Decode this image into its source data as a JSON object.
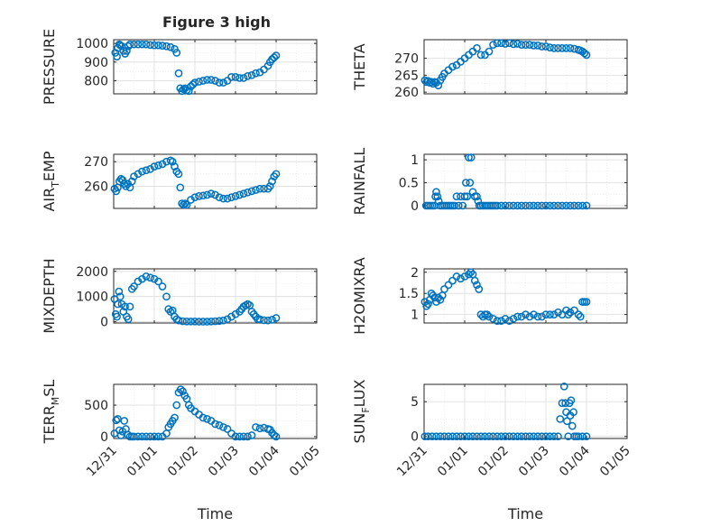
{
  "figure": {
    "title": "Figure 3 high"
  },
  "colors": {
    "marker": "#0072bd"
  },
  "chart_data": [
    {
      "id": "pressure",
      "type": "scatter",
      "ylabel": "PRESSURE",
      "xlim": [
        0,
        5
      ],
      "ylim": [
        730,
        1020
      ],
      "yticks": [
        800,
        900,
        1000
      ],
      "yticklabels": [
        "800",
        "900",
        "1000"
      ],
      "xticks": [],
      "x": [
        0.04,
        0.08,
        0.1,
        0.14,
        0.16,
        0.2,
        0.24,
        0.28,
        0.32,
        0.36,
        0.4,
        0.5,
        0.6,
        0.7,
        0.8,
        0.9,
        1.0,
        1.1,
        1.2,
        1.3,
        1.4,
        1.5,
        1.55,
        1.6,
        1.64,
        1.68,
        1.72,
        1.76,
        1.8,
        1.85,
        1.9,
        1.95,
        2.0,
        2.1,
        2.2,
        2.3,
        2.4,
        2.5,
        2.6,
        2.7,
        2.8,
        2.9,
        3.0,
        3.1,
        3.2,
        3.3,
        3.4,
        3.5,
        3.6,
        3.7,
        3.8,
        3.85,
        3.9,
        3.95,
        4.0
      ],
      "y": [
        950,
        930,
        975,
        995,
        990,
        985,
        960,
        945,
        960,
        985,
        995,
        995,
        995,
        995,
        995,
        992,
        990,
        990,
        988,
        985,
        980,
        970,
        950,
        840,
        760,
        745,
        755,
        760,
        750,
        745,
        770,
        780,
        790,
        795,
        800,
        805,
        805,
        800,
        790,
        790,
        800,
        820,
        820,
        815,
        815,
        825,
        830,
        840,
        845,
        860,
        880,
        900,
        915,
        925,
        935
      ]
    },
    {
      "id": "theta",
      "type": "scatter",
      "ylabel": "THETA",
      "xlim": [
        0,
        5
      ],
      "ylim": [
        259.5,
        275.5
      ],
      "yticks": [
        260,
        265,
        270
      ],
      "yticklabels": [
        "260",
        "265",
        "270"
      ],
      "xticks": [],
      "x": [
        0.02,
        0.06,
        0.1,
        0.14,
        0.18,
        0.22,
        0.26,
        0.3,
        0.35,
        0.4,
        0.45,
        0.5,
        0.6,
        0.7,
        0.8,
        0.9,
        1.0,
        1.1,
        1.2,
        1.3,
        1.4,
        1.5,
        1.6,
        1.7,
        1.8,
        1.9,
        2.0,
        2.1,
        2.2,
        2.3,
        2.4,
        2.5,
        2.6,
        2.7,
        2.8,
        2.9,
        3.0,
        3.1,
        3.2,
        3.3,
        3.4,
        3.5,
        3.6,
        3.7,
        3.8,
        3.85,
        3.9,
        3.95,
        4.0
      ],
      "y": [
        263.5,
        263,
        263.3,
        262.8,
        263,
        262.5,
        263,
        262.8,
        262,
        263.5,
        264.5,
        265.5,
        266.5,
        267.5,
        268,
        269,
        270,
        271,
        272,
        273,
        271,
        271,
        272,
        274,
        274.5,
        274.5,
        274.3,
        274.5,
        274.2,
        274.3,
        274,
        274,
        274,
        273.8,
        273.8,
        273.5,
        273.5,
        273.2,
        273,
        273,
        273,
        273,
        273,
        272.8,
        272.5,
        272.3,
        272,
        271.5,
        271
      ]
    },
    {
      "id": "air-temp",
      "type": "scatter",
      "ylabel": "AIR_TEMP",
      "ylabel_main": "AIR",
      "ylabel_sub": "T",
      "ylabel_rest": "EMP",
      "xlim": [
        0,
        5
      ],
      "ylim": [
        251,
        273
      ],
      "yticks": [
        260,
        270
      ],
      "yticklabels": [
        "260",
        "270"
      ],
      "xticks": [],
      "x": [
        0.02,
        0.06,
        0.1,
        0.14,
        0.18,
        0.22,
        0.26,
        0.3,
        0.35,
        0.4,
        0.45,
        0.5,
        0.6,
        0.7,
        0.8,
        0.9,
        1.0,
        1.1,
        1.2,
        1.3,
        1.4,
        1.45,
        1.5,
        1.55,
        1.6,
        1.64,
        1.68,
        1.72,
        1.76,
        1.8,
        1.9,
        2.0,
        2.1,
        2.2,
        2.3,
        2.4,
        2.5,
        2.6,
        2.7,
        2.8,
        2.9,
        3.0,
        3.1,
        3.2,
        3.3,
        3.4,
        3.5,
        3.6,
        3.7,
        3.8,
        3.85,
        3.9,
        3.95,
        4.0
      ],
      "y": [
        259,
        258,
        259.5,
        262,
        263,
        262.5,
        261,
        260,
        261,
        259.5,
        262,
        264,
        265,
        266,
        266.5,
        267,
        268,
        268.5,
        269,
        270,
        270.5,
        270,
        268,
        266,
        265,
        259.5,
        253,
        252.5,
        253,
        252.5,
        254.5,
        255.5,
        256,
        256.2,
        256.5,
        257,
        256.5,
        255.5,
        255,
        255,
        255.5,
        256,
        256.5,
        257,
        257.5,
        258,
        258.5,
        259,
        259,
        259,
        260,
        262,
        264,
        265
      ]
    },
    {
      "id": "rainfall",
      "type": "scatter",
      "ylabel": "RAINFALL",
      "xlim": [
        0,
        5
      ],
      "ylim": [
        -0.06,
        1.12
      ],
      "yticks": [
        0,
        0.5,
        1
      ],
      "yticklabels": [
        "0",
        "0.5",
        "1"
      ],
      "xticks": [],
      "x": [
        0.05,
        0.1,
        0.15,
        0.2,
        0.25,
        0.28,
        0.3,
        0.33,
        0.36,
        0.4,
        0.45,
        0.5,
        0.55,
        0.6,
        0.65,
        0.7,
        0.75,
        0.8,
        0.85,
        0.9,
        0.95,
        1.0,
        1.03,
        1.06,
        1.1,
        1.13,
        1.16,
        1.2,
        1.25,
        1.3,
        1.33,
        1.36,
        1.4,
        1.45,
        1.5,
        1.55,
        1.6,
        1.65,
        1.7,
        1.75,
        1.8,
        1.9,
        2.0,
        2.1,
        2.2,
        2.3,
        2.4,
        2.5,
        2.6,
        2.7,
        2.8,
        2.9,
        3.0,
        3.1,
        3.2,
        3.3,
        3.4,
        3.5,
        3.6,
        3.7,
        3.8,
        3.9,
        4.0
      ],
      "y": [
        0,
        0,
        0,
        0,
        0,
        0.2,
        0.3,
        0.2,
        0.1,
        0,
        0,
        0,
        0,
        0,
        0,
        0,
        0,
        0.2,
        0,
        0.2,
        0,
        0.2,
        0.5,
        0.2,
        1.05,
        0.5,
        1.05,
        0.3,
        0.2,
        0.2,
        0.1,
        0,
        0,
        0,
        0,
        0,
        0,
        0,
        0,
        0,
        0,
        0,
        0,
        0,
        0,
        0,
        0,
        0,
        0,
        0,
        0,
        0,
        0,
        0,
        0,
        0,
        0,
        0,
        0,
        0,
        0,
        0,
        0
      ]
    },
    {
      "id": "mixdepth",
      "type": "scatter",
      "ylabel": "MIXDEPTH",
      "xlim": [
        0,
        5
      ],
      "ylim": [
        -50,
        2100
      ],
      "yticks": [
        0,
        1000,
        2000
      ],
      "yticklabels": [
        "0",
        "1000",
        "2000"
      ],
      "xticks": [],
      "x": [
        0.02,
        0.05,
        0.08,
        0.1,
        0.13,
        0.16,
        0.2,
        0.24,
        0.28,
        0.32,
        0.36,
        0.4,
        0.45,
        0.5,
        0.6,
        0.7,
        0.8,
        0.9,
        1.0,
        1.1,
        1.2,
        1.3,
        1.35,
        1.4,
        1.45,
        1.5,
        1.55,
        1.6,
        1.7,
        1.8,
        1.9,
        2.0,
        2.1,
        2.2,
        2.3,
        2.4,
        2.5,
        2.6,
        2.7,
        2.8,
        2.9,
        3.0,
        3.1,
        3.15,
        3.2,
        3.25,
        3.3,
        3.35,
        3.4,
        3.45,
        3.5,
        3.55,
        3.6,
        3.7,
        3.8,
        3.9,
        4.0
      ],
      "y": [
        900,
        300,
        200,
        700,
        1200,
        1000,
        700,
        400,
        600,
        200,
        100,
        600,
        1300,
        1400,
        1600,
        1700,
        1800,
        1750,
        1700,
        1600,
        1400,
        1000,
        500,
        400,
        450,
        200,
        100,
        50,
        20,
        10,
        10,
        10,
        5,
        5,
        5,
        10,
        20,
        30,
        50,
        100,
        200,
        300,
        400,
        500,
        600,
        650,
        700,
        650,
        400,
        300,
        200,
        100,
        100,
        60,
        50,
        80,
        150
      ]
    },
    {
      "id": "h2omixra",
      "type": "scatter",
      "ylabel": "H2OMIXRA",
      "xlim": [
        0,
        5
      ],
      "ylim": [
        0.8,
        2.08
      ],
      "yticks": [
        1,
        1.5,
        2
      ],
      "yticklabels": [
        "1",
        "1.5",
        "2"
      ],
      "xticks": [],
      "x": [
        0.02,
        0.06,
        0.1,
        0.14,
        0.18,
        0.22,
        0.26,
        0.3,
        0.35,
        0.4,
        0.45,
        0.5,
        0.6,
        0.7,
        0.8,
        0.9,
        1.0,
        1.1,
        1.15,
        1.2,
        1.25,
        1.3,
        1.35,
        1.4,
        1.45,
        1.5,
        1.55,
        1.6,
        1.7,
        1.8,
        1.9,
        2.0,
        2.1,
        2.2,
        2.3,
        2.4,
        2.5,
        2.6,
        2.7,
        2.8,
        2.9,
        3.0,
        3.1,
        3.2,
        3.3,
        3.4,
        3.5,
        3.55,
        3.6,
        3.7,
        3.8,
        3.85,
        3.9,
        3.95,
        4.0
      ],
      "y": [
        1.3,
        1.2,
        1.25,
        1.35,
        1.5,
        1.45,
        1.4,
        1.3,
        1.4,
        1.35,
        1.45,
        1.6,
        1.7,
        1.8,
        1.9,
        1.85,
        1.9,
        1.95,
        2.0,
        1.95,
        1.8,
        1.7,
        1.6,
        1.0,
        0.95,
        1.0,
        1.0,
        0.95,
        0.9,
        0.85,
        0.85,
        0.9,
        0.85,
        0.9,
        0.95,
        0.95,
        1.0,
        0.95,
        1.0,
        0.95,
        0.95,
        1.0,
        1.0,
        1.0,
        1.05,
        1.0,
        1.1,
        1.0,
        1.05,
        1.1,
        1.0,
        0.95,
        1.3,
        1.3,
        1.3
      ]
    },
    {
      "id": "terr-msl",
      "type": "scatter",
      "ylabel": "TERR_MSL",
      "ylabel_main": "TERR",
      "ylabel_sub": "M",
      "ylabel_rest": "SL",
      "xlim": [
        0,
        5
      ],
      "ylim": [
        -30,
        830
      ],
      "yticks": [
        0,
        500
      ],
      "yticklabels": [
        "0",
        "500"
      ],
      "xticks": [
        0,
        1,
        2,
        3,
        4,
        5
      ],
      "xticklabels": [
        "12/31",
        "01/01",
        "01/02",
        "01/03",
        "01/04",
        "01/05"
      ],
      "xlabel": "Time",
      "x": [
        0.02,
        0.06,
        0.1,
        0.14,
        0.18,
        0.22,
        0.26,
        0.3,
        0.35,
        0.4,
        0.45,
        0.5,
        0.6,
        0.7,
        0.8,
        0.9,
        1.0,
        1.1,
        1.2,
        1.3,
        1.35,
        1.4,
        1.45,
        1.5,
        1.55,
        1.6,
        1.65,
        1.7,
        1.75,
        1.8,
        1.85,
        1.9,
        2.0,
        2.1,
        2.2,
        2.3,
        2.4,
        2.5,
        2.6,
        2.7,
        2.8,
        2.9,
        3.0,
        3.1,
        3.2,
        3.3,
        3.4,
        3.5,
        3.6,
        3.7,
        3.8,
        3.85,
        3.9,
        3.95,
        4.0
      ],
      "y": [
        50,
        260,
        280,
        100,
        20,
        80,
        250,
        120,
        30,
        0,
        0,
        0,
        0,
        0,
        0,
        0,
        0,
        0,
        0,
        50,
        150,
        200,
        250,
        300,
        500,
        700,
        750,
        720,
        650,
        600,
        500,
        450,
        400,
        350,
        300,
        280,
        250,
        200,
        180,
        150,
        120,
        50,
        0,
        0,
        0,
        0,
        20,
        150,
        130,
        140,
        120,
        110,
        60,
        20,
        0
      ]
    },
    {
      "id": "sun-flux",
      "type": "scatter",
      "ylabel": "SUN_FLUX",
      "ylabel_main": "SUN",
      "ylabel_sub": "F",
      "ylabel_rest": "LUX",
      "xlim": [
        0,
        5
      ],
      "ylim": [
        -0.3,
        7.5
      ],
      "yticks": [
        0,
        5
      ],
      "yticklabels": [
        "0",
        "5"
      ],
      "xticks": [
        0,
        1,
        2,
        3,
        4,
        5
      ],
      "xticklabels": [
        "12/31",
        "01/01",
        "01/02",
        "01/03",
        "01/04",
        "01/05"
      ],
      "xlabel": "Time",
      "x": [
        0.02,
        0.1,
        0.2,
        0.3,
        0.4,
        0.5,
        0.6,
        0.7,
        0.8,
        0.9,
        1.0,
        1.1,
        1.2,
        1.3,
        1.4,
        1.5,
        1.6,
        1.7,
        1.8,
        1.9,
        2.0,
        2.1,
        2.2,
        2.3,
        2.4,
        2.5,
        2.6,
        2.7,
        2.8,
        2.9,
        3.0,
        3.1,
        3.2,
        3.3,
        3.35,
        3.4,
        3.45,
        3.48,
        3.5,
        3.52,
        3.55,
        3.58,
        3.6,
        3.62,
        3.65,
        3.68,
        3.7,
        3.75,
        3.8,
        3.9,
        4.0
      ],
      "y": [
        0,
        0,
        0,
        0,
        0,
        0,
        0,
        0,
        0,
        0,
        0,
        0,
        0,
        0,
        0,
        0,
        0,
        0,
        0,
        0,
        0,
        0,
        0,
        0,
        0,
        0,
        0,
        0,
        0,
        0,
        0,
        0,
        0,
        0,
        2.5,
        4.8,
        7.2,
        4.8,
        3.5,
        2.2,
        0,
        4.8,
        3.0,
        5.2,
        1.5,
        3.5,
        0,
        0,
        0,
        0,
        0
      ]
    }
  ]
}
